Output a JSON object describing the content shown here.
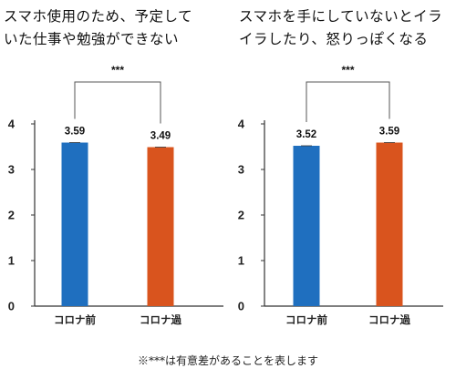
{
  "panels": [
    {
      "title_lines": [
        "スマホ使用のため、予定して",
        "いた仕事や勉強ができない"
      ]
    },
    {
      "title_lines": [
        "スマホを手にしていないとイラ",
        "イラしたり、怒りっぽくなる"
      ]
    }
  ],
  "footnote": "※***は有意差があることを表します",
  "colors": {
    "before": "#1f6fbf",
    "after": "#d9541e",
    "axis": "#333333",
    "bracket": "#555555"
  },
  "chart_data": [
    {
      "type": "bar",
      "title": "スマホ使用のため、予定していた仕事や勉強ができない",
      "categories": [
        "コロナ前",
        "コロナ過"
      ],
      "values": [
        3.59,
        3.49
      ],
      "value_labels": [
        "3.59",
        "3.49"
      ],
      "ylim": [
        0,
        4
      ],
      "yticks": [
        "0",
        "1",
        "2",
        "3",
        "4"
      ],
      "significance": "***",
      "grid": false
    },
    {
      "type": "bar",
      "title": "スマホを手にしていないとイライラしたり、怒りっぽくなる",
      "categories": [
        "コロナ前",
        "コロナ過"
      ],
      "values": [
        3.52,
        3.59
      ],
      "value_labels": [
        "3.52",
        "3.59"
      ],
      "ylim": [
        0,
        4
      ],
      "yticks": [
        "0",
        "1",
        "2",
        "3",
        "4"
      ],
      "significance": "***",
      "grid": false
    }
  ]
}
